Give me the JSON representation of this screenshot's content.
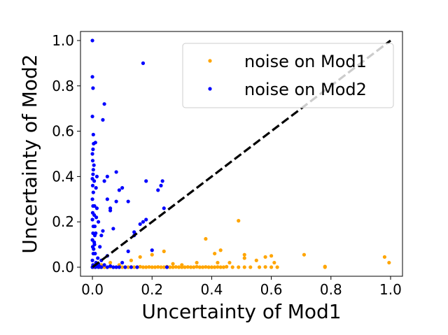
{
  "chart_data": {
    "type": "scatter",
    "title": "",
    "xlabel": "Uncertainty of Mod1",
    "ylabel": "Uncertainty of Mod2",
    "xlim": [
      -0.04,
      1.04
    ],
    "ylim": [
      -0.04,
      1.04
    ],
    "xticks": [
      "0.0",
      "0.2",
      "0.4",
      "0.6",
      "0.8",
      "1.0"
    ],
    "yticks": [
      "0.0",
      "0.2",
      "0.4",
      "0.6",
      "0.8",
      "1.0"
    ],
    "grid": false,
    "legend_position": "top-right",
    "reference_line": {
      "x": [
        0,
        1
      ],
      "y": [
        0,
        1
      ],
      "style": "dashed",
      "color": "#000000"
    },
    "series": [
      {
        "name": "noise on Mod1",
        "color": "#ffa500",
        "points": [
          [
            0.005,
            0.0
          ],
          [
            0.01,
            0.0
          ],
          [
            0.015,
            0.003
          ],
          [
            0.02,
            0.001
          ],
          [
            0.025,
            0.0
          ],
          [
            0.03,
            0.002
          ],
          [
            0.04,
            0.0
          ],
          [
            0.05,
            0.0
          ],
          [
            0.06,
            0.001
          ],
          [
            0.07,
            0.0
          ],
          [
            0.08,
            0.0
          ],
          [
            0.09,
            0.002
          ],
          [
            0.1,
            0.0
          ],
          [
            0.11,
            0.0
          ],
          [
            0.12,
            0.0
          ],
          [
            0.13,
            0.001
          ],
          [
            0.14,
            0.0
          ],
          [
            0.15,
            0.0
          ],
          [
            0.16,
            0.002
          ],
          [
            0.17,
            0.0
          ],
          [
            0.18,
            0.0
          ],
          [
            0.19,
            0.001
          ],
          [
            0.2,
            0.0
          ],
          [
            0.21,
            0.0
          ],
          [
            0.22,
            0.001
          ],
          [
            0.23,
            0.0
          ],
          [
            0.24,
            0.0
          ],
          [
            0.25,
            0.002
          ],
          [
            0.26,
            0.0
          ],
          [
            0.27,
            0.0
          ],
          [
            0.28,
            0.001
          ],
          [
            0.29,
            0.0
          ],
          [
            0.3,
            0.0
          ],
          [
            0.31,
            0.0
          ],
          [
            0.32,
            0.001
          ],
          [
            0.33,
            0.0
          ],
          [
            0.34,
            0.0
          ],
          [
            0.35,
            0.002
          ],
          [
            0.36,
            0.0
          ],
          [
            0.37,
            0.0
          ],
          [
            0.38,
            0.001
          ],
          [
            0.39,
            0.0
          ],
          [
            0.4,
            0.0
          ],
          [
            0.41,
            0.0
          ],
          [
            0.42,
            0.001
          ],
          [
            0.43,
            0.0
          ],
          [
            0.44,
            0.0
          ],
          [
            0.45,
            0.002
          ],
          [
            0.47,
            0.0
          ],
          [
            0.49,
            0.0
          ],
          [
            0.51,
            0.0
          ],
          [
            0.53,
            0.0
          ],
          [
            0.56,
            0.0
          ],
          [
            0.58,
            0.001
          ],
          [
            0.6,
            0.0
          ],
          [
            0.62,
            0.0
          ],
          [
            0.78,
            0.0
          ],
          [
            0.78,
            0.003
          ],
          [
            0.06,
            0.02
          ],
          [
            0.13,
            0.03
          ],
          [
            0.16,
            0.045
          ],
          [
            0.2,
            0.055
          ],
          [
            0.24,
            0.07
          ],
          [
            0.27,
            0.015
          ],
          [
            0.3,
            0.01
          ],
          [
            0.38,
            0.125
          ],
          [
            0.41,
            0.06
          ],
          [
            0.43,
            0.075
          ],
          [
            0.42,
            0.02
          ],
          [
            0.46,
            0.02
          ],
          [
            0.49,
            0.205
          ],
          [
            0.51,
            0.055
          ],
          [
            0.51,
            0.04
          ],
          [
            0.55,
            0.03
          ],
          [
            0.58,
            0.045
          ],
          [
            0.6,
            0.05
          ],
          [
            0.61,
            0.02
          ],
          [
            0.71,
            0.055
          ],
          [
            0.98,
            0.045
          ],
          [
            0.995,
            0.02
          ],
          [
            0.35,
            0.02
          ],
          [
            0.09,
            0.01
          ],
          [
            0.03,
            0.01
          ]
        ]
      },
      {
        "name": "noise on Mod2",
        "color": "#0000ff",
        "points": [
          [
            0.0,
            1.0
          ],
          [
            0.0,
            0.84
          ],
          [
            0.002,
            0.79
          ],
          [
            0.0,
            0.665
          ],
          [
            0.003,
            0.585
          ],
          [
            0.004,
            0.545
          ],
          [
            0.002,
            0.52
          ],
          [
            0.0,
            0.5
          ],
          [
            0.001,
            0.47
          ],
          [
            0.003,
            0.43
          ],
          [
            0.002,
            0.41
          ],
          [
            0.0,
            0.39
          ],
          [
            0.001,
            0.36
          ],
          [
            0.003,
            0.33
          ],
          [
            0.0,
            0.3
          ],
          [
            0.002,
            0.27
          ],
          [
            0.001,
            0.24
          ],
          [
            0.0,
            0.21
          ],
          [
            0.003,
            0.18
          ],
          [
            0.002,
            0.15
          ],
          [
            0.0,
            0.12
          ],
          [
            0.001,
            0.09
          ],
          [
            0.003,
            0.06
          ],
          [
            0.0,
            0.03
          ],
          [
            0.002,
            0.01
          ],
          [
            0.0,
            0.0
          ],
          [
            0.005,
            0.45
          ],
          [
            0.006,
            0.38
          ],
          [
            0.007,
            0.27
          ],
          [
            0.006,
            0.23
          ],
          [
            0.008,
            0.14
          ],
          [
            0.007,
            0.1
          ],
          [
            0.01,
            0.55
          ],
          [
            0.012,
            0.35
          ],
          [
            0.015,
            0.26
          ],
          [
            0.015,
            0.4
          ],
          [
            0.02,
            0.2
          ],
          [
            0.025,
            0.09
          ],
          [
            0.03,
            0.14
          ],
          [
            0.035,
            0.16
          ],
          [
            0.04,
            0.72
          ],
          [
            0.035,
            0.65
          ],
          [
            0.04,
            0.38
          ],
          [
            0.05,
            0.4
          ],
          [
            0.05,
            0.3
          ],
          [
            0.06,
            0.26
          ],
          [
            0.06,
            0.25
          ],
          [
            0.07,
            0.17
          ],
          [
            0.08,
            0.42
          ],
          [
            0.08,
            0.29
          ],
          [
            0.09,
            0.34
          ],
          [
            0.1,
            0.35
          ],
          [
            0.12,
            0.29
          ],
          [
            0.14,
            0.14
          ],
          [
            0.17,
            0.9
          ],
          [
            0.17,
            0.2
          ],
          [
            0.18,
            0.21
          ],
          [
            0.18,
            0.38
          ],
          [
            0.2,
            0.075
          ],
          [
            0.22,
            0.34
          ],
          [
            0.23,
            0.36
          ],
          [
            0.235,
            0.38
          ],
          [
            0.24,
            0.26
          ],
          [
            0.14,
            0.155
          ],
          [
            0.16,
            0.19
          ],
          [
            0.12,
            0.07
          ],
          [
            0.1,
            0.02
          ],
          [
            0.05,
            0.05
          ],
          [
            0.03,
            0.03
          ],
          [
            0.02,
            0.015
          ],
          [
            0.04,
            0.01
          ],
          [
            0.06,
            0.005
          ],
          [
            0.08,
            0.0
          ],
          [
            0.01,
            0.0
          ],
          [
            0.02,
            0.0
          ],
          [
            0.03,
            0.0
          ],
          [
            0.05,
            0.0
          ],
          [
            0.07,
            0.0
          ],
          [
            0.09,
            0.0
          ],
          [
            0.11,
            0.0
          ],
          [
            0.13,
            0.0
          ],
          [
            0.15,
            0.0
          ],
          [
            0.25,
            0.0
          ],
          [
            0.005,
            0.005
          ],
          [
            0.015,
            0.005
          ],
          [
            0.025,
            0.002
          ],
          [
            0.012,
            0.02
          ],
          [
            0.018,
            0.04
          ],
          [
            0.009,
            0.06
          ],
          [
            0.004,
            0.08
          ],
          [
            0.006,
            0.11
          ],
          [
            0.011,
            0.15
          ],
          [
            0.008,
            0.18
          ],
          [
            0.013,
            0.22
          ]
        ]
      }
    ]
  }
}
